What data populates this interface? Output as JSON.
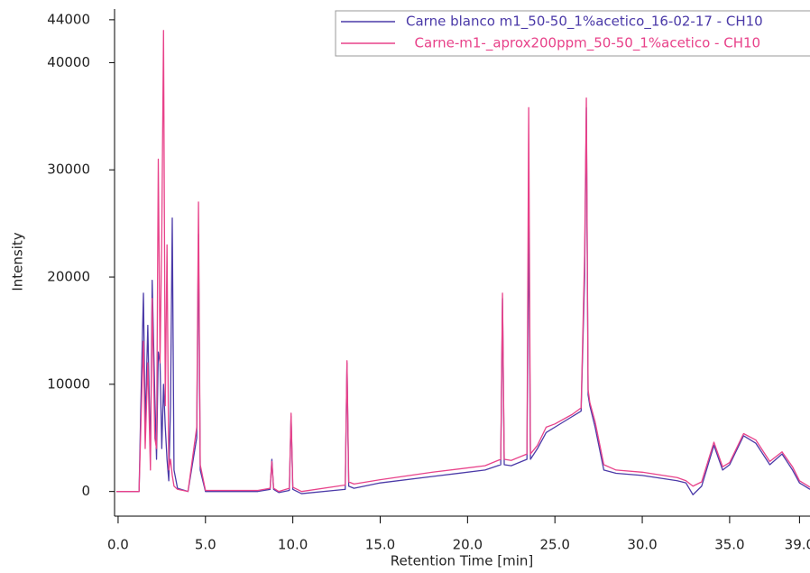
{
  "chart_data": {
    "type": "line",
    "xlabel": "Retention Time [min]",
    "ylabel": "Intensity",
    "x": [
      -0.1,
      1.2,
      1.3,
      1.45,
      1.55,
      1.7,
      1.85,
      1.95,
      2.1,
      2.2,
      2.3,
      2.4,
      2.5,
      2.6,
      2.7,
      2.8,
      2.9,
      3.0,
      3.1,
      3.2,
      3.4,
      4.0,
      4.5,
      4.6,
      4.7,
      5.0,
      8.0,
      8.7,
      8.8,
      8.9,
      9.2,
      9.8,
      9.9,
      10.0,
      10.5,
      13.0,
      13.1,
      13.2,
      13.5,
      15.0,
      18.0,
      21.0,
      21.9,
      22.0,
      22.1,
      22.5,
      23.4,
      23.5,
      23.6,
      24.0,
      24.5,
      25.0,
      26.0,
      26.5,
      26.7,
      26.8,
      26.9,
      27.0,
      27.3,
      27.8,
      28.5,
      30.0,
      32.0,
      32.5,
      32.9,
      33.4,
      34.1,
      34.6,
      35.0,
      35.8,
      36.5,
      37.3,
      38.0,
      38.6,
      39.0,
      39.6
    ],
    "series": [
      {
        "name": "Carne blanco m1_50-50_1%acetico_16-02-17 - CH10",
        "color": "#4b3aa8",
        "values": [
          0,
          0,
          8000,
          18500,
          6000,
          15500,
          3000,
          19700,
          9000,
          3000,
          13000,
          12000,
          4000,
          10000,
          6000,
          3000,
          1000,
          8000,
          25500,
          2000,
          300,
          0,
          5000,
          24000,
          2000,
          0,
          0,
          200,
          3000,
          200,
          -100,
          100,
          7000,
          200,
          -200,
          200,
          12000,
          500,
          300,
          800,
          1400,
          2000,
          2500,
          18000,
          2500,
          2400,
          3000,
          26000,
          3000,
          4000,
          5500,
          6000,
          7000,
          7500,
          20000,
          35800,
          9000,
          8000,
          6000,
          2000,
          1700,
          1500,
          1000,
          800,
          -300,
          500,
          4300,
          2000,
          2500,
          5200,
          4500,
          2500,
          3500,
          2000,
          800,
          200
        ]
      },
      {
        "name": "  Carne-m1-_aprox200ppm_50-50_1%acetico - CH10",
        "color": "#e8428a",
        "values": [
          0,
          0,
          6000,
          14000,
          4000,
          12000,
          2000,
          18000,
          5000,
          4000,
          31000,
          12000,
          24000,
          43000,
          8000,
          23000,
          2000,
          3000,
          1500,
          500,
          200,
          0,
          6000,
          27000,
          2500,
          100,
          100,
          300,
          2800,
          300,
          0,
          300,
          7300,
          400,
          0,
          600,
          12200,
          900,
          700,
          1100,
          1800,
          2400,
          3000,
          18500,
          3000,
          2900,
          3500,
          35800,
          3500,
          4300,
          6000,
          6300,
          7200,
          7800,
          22000,
          36700,
          9500,
          8300,
          6500,
          2500,
          2000,
          1800,
          1300,
          1000,
          500,
          900,
          4600,
          2300,
          2700,
          5400,
          4800,
          2800,
          3700,
          2300,
          1000,
          400
        ]
      }
    ],
    "xlim": [
      -0.1,
      39.6
    ],
    "xticks": [
      {
        "value": 0,
        "label": "0.0"
      },
      {
        "value": 5,
        "label": "5.0"
      },
      {
        "value": 10,
        "label": "10.0"
      },
      {
        "value": 15,
        "label": "15.0"
      },
      {
        "value": 20,
        "label": "20.0"
      },
      {
        "value": 25,
        "label": "25.0"
      },
      {
        "value": 30,
        "label": "30.0"
      },
      {
        "value": 35,
        "label": "35.0"
      },
      {
        "value": 39,
        "label": "39.0"
      }
    ],
    "ylim": [
      -2300,
      45000
    ],
    "yticks": [
      0,
      10000,
      20000,
      30000,
      40000,
      44000
    ]
  }
}
